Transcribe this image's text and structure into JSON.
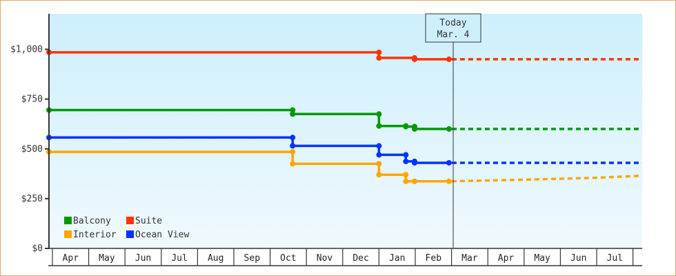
{
  "chart_data": {
    "type": "line",
    "subtype": "step",
    "title": "",
    "xlabel": "",
    "ylabel": "",
    "ylim": [
      0,
      1180
    ],
    "y_ticks": [
      {
        "value": 0,
        "label": "$0"
      },
      {
        "value": 250,
        "label": "$250"
      },
      {
        "value": 500,
        "label": "$500"
      },
      {
        "value": 750,
        "label": "$750"
      },
      {
        "value": 1000,
        "label": "$1,000"
      }
    ],
    "x_ticks": [
      "Apr",
      "May",
      "Jun",
      "Jul",
      "Aug",
      "Sep",
      "Oct",
      "Nov",
      "Dec",
      "Jan",
      "Feb",
      "Mar",
      "Apr",
      "May",
      "Jun",
      "Jul"
    ],
    "today_marker": {
      "line1": "Today",
      "line2": "Mar. 4",
      "x_index": 10.93
    },
    "legend": {
      "position": "bottom-left",
      "entries": [
        "Balcony",
        "Suite",
        "Interior",
        "Ocean View"
      ]
    },
    "grid": false,
    "series": [
      {
        "name": "Suite",
        "color": "#ff3300",
        "points": [
          [
            -0.1,
            985
          ],
          [
            9.0,
            985
          ],
          [
            9.0,
            957
          ],
          [
            9.98,
            957
          ],
          [
            9.98,
            950
          ],
          [
            10.93,
            950
          ]
        ],
        "forecast": [
          [
            10.93,
            950
          ],
          [
            16.3,
            950
          ]
        ]
      },
      {
        "name": "Balcony",
        "color": "#009900",
        "points": [
          [
            -0.1,
            695
          ],
          [
            6.62,
            695
          ],
          [
            6.62,
            675
          ],
          [
            9.0,
            675
          ],
          [
            9.0,
            615
          ],
          [
            9.74,
            615
          ],
          [
            9.74,
            612
          ],
          [
            9.98,
            612
          ],
          [
            9.98,
            600
          ],
          [
            10.93,
            600
          ]
        ],
        "forecast": [
          [
            10.93,
            600
          ],
          [
            16.3,
            600
          ]
        ]
      },
      {
        "name": "Ocean View",
        "color": "#0033ff",
        "points": [
          [
            -0.1,
            557
          ],
          [
            6.62,
            557
          ],
          [
            6.62,
            515
          ],
          [
            9.0,
            515
          ],
          [
            9.0,
            470
          ],
          [
            9.74,
            470
          ],
          [
            9.74,
            437
          ],
          [
            9.98,
            437
          ],
          [
            9.98,
            430
          ],
          [
            10.93,
            430
          ]
        ],
        "forecast": [
          [
            10.93,
            430
          ],
          [
            16.3,
            430
          ]
        ]
      },
      {
        "name": "Interior",
        "color": "#ffa500",
        "points": [
          [
            -0.1,
            485
          ],
          [
            6.62,
            485
          ],
          [
            6.62,
            425
          ],
          [
            9.0,
            425
          ],
          [
            9.0,
            370
          ],
          [
            9.74,
            370
          ],
          [
            9.74,
            337
          ],
          [
            9.98,
            337
          ],
          [
            9.98,
            337
          ],
          [
            10.93,
            337
          ]
        ],
        "forecast": [
          [
            10.93,
            337
          ],
          [
            13.0,
            345
          ],
          [
            15.0,
            355
          ],
          [
            15.6,
            360
          ],
          [
            16.3,
            365
          ]
        ]
      }
    ]
  },
  "chart": {
    "today_line1": "Today",
    "today_line2": "Mar. 4"
  }
}
